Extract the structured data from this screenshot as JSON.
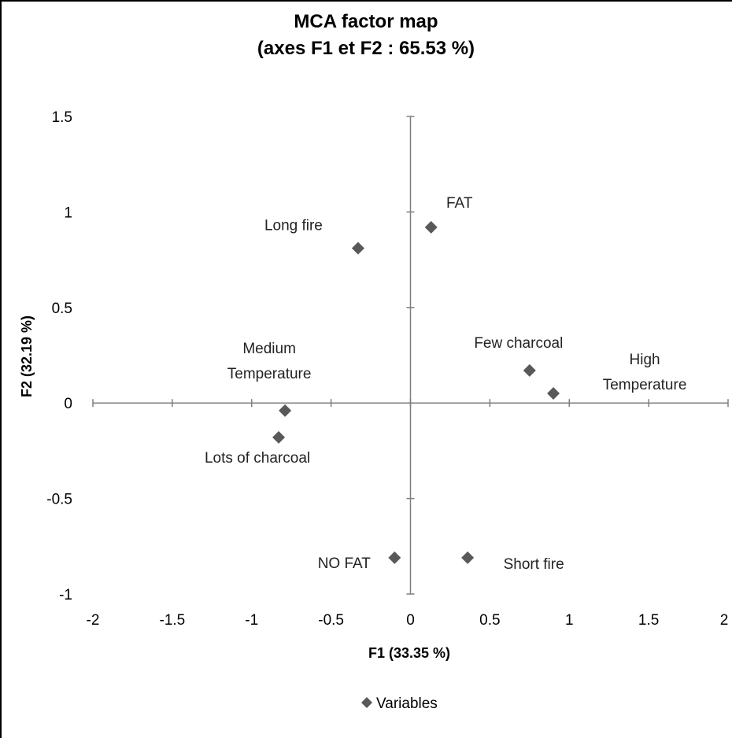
{
  "chart_data": {
    "type": "scatter",
    "title": "MCA factor map",
    "subtitle": "(axes F1 et F2 : 65.53 %)",
    "xlabel": "F1 (33.35 %)",
    "ylabel": "F2 (32.19 %)",
    "xlim": [
      -2,
      2
    ],
    "ylim": [
      -1,
      1.5
    ],
    "x_ticks": [
      "-2",
      "-1.5",
      "-1",
      "-0.5",
      "0",
      "0.5",
      "1",
      "1.5",
      "2"
    ],
    "y_ticks": [
      "1.5",
      "1",
      "0.5",
      "0",
      "-0.5",
      "-1"
    ],
    "grid": false,
    "legend": "bottom",
    "series": [
      {
        "name": "Variables",
        "color": "#595959",
        "marker": "diamond",
        "points": [
          {
            "label": "FAT",
            "x": 0.13,
            "y": 0.92
          },
          {
            "label": "Long fire",
            "x": -0.33,
            "y": 0.81
          },
          {
            "label": "Few charcoal",
            "x": 0.75,
            "y": 0.17
          },
          {
            "label": "High Temperature",
            "x": 0.9,
            "y": 0.05
          },
          {
            "label": "Medium Temperature",
            "x": -0.79,
            "y": -0.04
          },
          {
            "label": "Lots of charcoal",
            "x": -0.83,
            "y": -0.18
          },
          {
            "label": "NO FAT",
            "x": -0.1,
            "y": -0.81
          },
          {
            "label": "Short fire",
            "x": 0.36,
            "y": -0.81
          }
        ]
      }
    ]
  }
}
